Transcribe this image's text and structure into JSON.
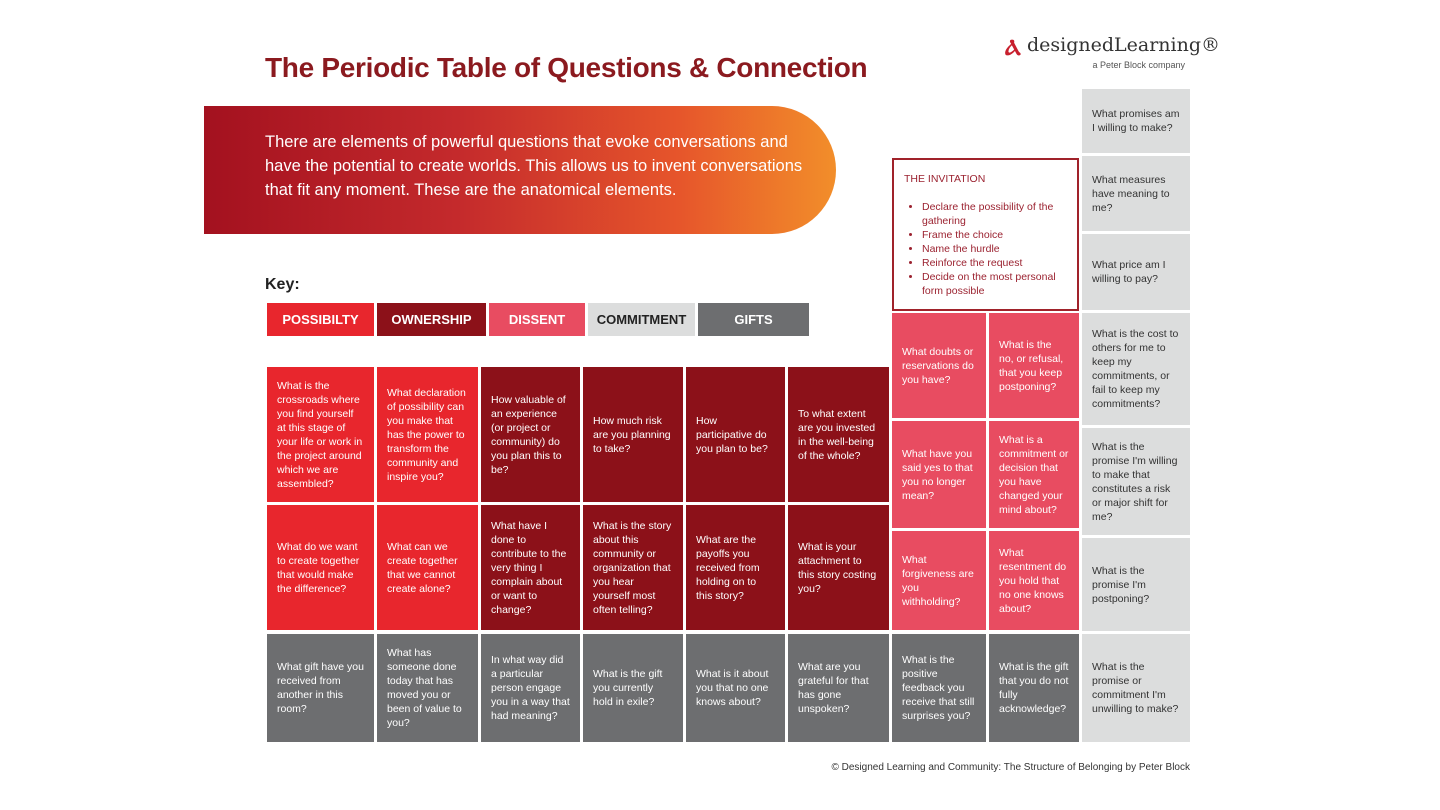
{
  "title": "The Periodic Table of Questions & Connection",
  "logo": {
    "brand": "designedLearning®",
    "sub": "a Peter Block company"
  },
  "banner": "There are elements of powerful questions that evoke conversations and have the potential to create worlds. This allows us to invent conversations that fit any moment. These are the anatomical elements.",
  "key": {
    "label": "Key:",
    "items": [
      "POSSIBILTY",
      "OWNERSHIP",
      "DISSENT",
      "COMMITMENT",
      "GIFTS"
    ]
  },
  "invitation": {
    "title": "THE INVITATION",
    "items": [
      "Declare the possibility of the gathering",
      "Frame the choice",
      "Name the hurdle",
      "Reinforce the request",
      "Decide on the most personal form possible"
    ]
  },
  "possibility": [
    "What is the crossroads where you find yourself at this stage of your life or work in the project around which we are assembled?",
    "What declaration of possibility can you make that has the power to transform the community and inspire you?",
    "What do we want to create together that would make the difference?",
    "What can we create together that we cannot create alone?"
  ],
  "ownership": [
    "How valuable of an experience (or project or community) do you plan this to be?",
    "How much risk are you planning to take?",
    "How participative do you plan to be?",
    "To what extent are you invested in the well-being of the whole?",
    "What have I done to contribute to the very thing I complain about or want to change?",
    "What is the story about this community or organization that you hear yourself most often telling?",
    "What are the payoffs you received from holding on to this story?",
    "What is your attachment to this story costing you?"
  ],
  "dissent": [
    "What doubts or reservations do you have?",
    "What is the no, or refusal, that you keep postponing?",
    "What have you said yes to that you no longer mean?",
    "What is a commitment or decision that you have changed your mind about?",
    "What forgiveness are you withholding?",
    "What resentment do you hold that no one knows about?"
  ],
  "commitment": [
    "What promises am I willing to make?",
    "What measures have meaning to me?",
    "What price am I willing to pay?",
    "What is the cost to others for me to keep my commitments, or fail to keep my commitments?",
    "What is the promise I'm willing to make that constitutes a risk or major shift for me?",
    "What is the promise I'm postponing?",
    "What is the promise or commitment I'm unwilling to make?"
  ],
  "gifts": [
    "What gift have you received from another in this room?",
    "What has someone done today that has moved you or been of value to you?",
    "In what way did a particular person engage you in a way that had meaning?",
    "What is the gift you currently hold in exile?",
    "What is it about you that no one knows about?",
    "What are you grateful for that has gone unspoken?",
    "What is the positive feedback you receive that still surprises you?",
    "What is the gift that you do not fully acknowledge?"
  ],
  "footer": "© Designed Learning and Community: The Structure of Belonging by Peter Block"
}
